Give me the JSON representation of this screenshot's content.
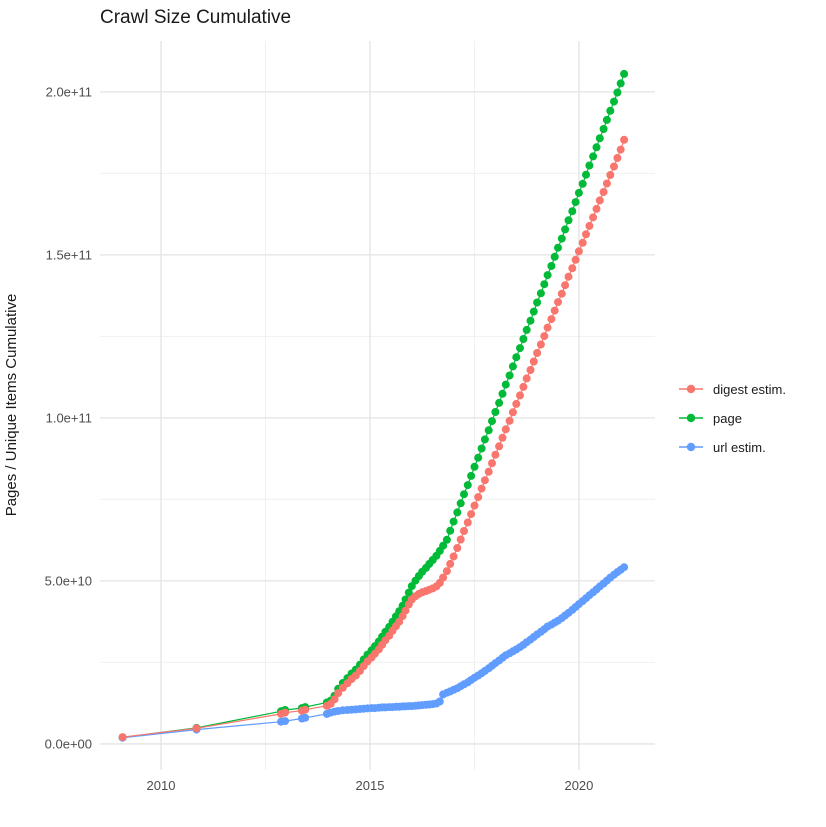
{
  "title": "Crawl Size Cumulative",
  "colors": {
    "digest": "#F8766D",
    "page": "#00BA38",
    "url": "#619CFF",
    "grid_major": "#E3E3E3",
    "grid_minor": "#F0F0F0",
    "axis_text": "#4d4d4d",
    "text": "#1a1a1a",
    "background": "#ffffff"
  },
  "chart_data": {
    "type": "scatter",
    "title": "Crawl Size Cumulative",
    "xlabel": "",
    "ylabel": "Pages / Unique Items Cumulative",
    "value_unit": "1e9 (billions of pages / unique items)",
    "xlim": [
      2008.54,
      2021.82
    ],
    "ylim": [
      -8,
      215.6
    ],
    "grid": "on",
    "legend_position": "right",
    "x_ticks": [
      {
        "value": 2010,
        "label": "2010"
      },
      {
        "value": 2015,
        "label": "2015"
      },
      {
        "value": 2020,
        "label": "2020"
      }
    ],
    "x_minor": [
      2012.5,
      2017.5
    ],
    "y_ticks": [
      {
        "value": 0,
        "label": "0.0e+00"
      },
      {
        "value": 50,
        "label": "5.0e+10"
      },
      {
        "value": 100,
        "label": "1.0e+11"
      },
      {
        "value": 150,
        "label": "1.5e+11"
      },
      {
        "value": 200,
        "label": "2.0e+11"
      }
    ],
    "y_minor": [
      25,
      75,
      125,
      175
    ],
    "series": [
      {
        "name": "digest estim.",
        "color": "#F8766D",
        "points": [
          [
            2009.08,
            2.1
          ],
          [
            2010.85,
            4.8
          ],
          [
            2012.87,
            9.2
          ],
          [
            2012.97,
            9.6
          ],
          [
            2013.37,
            10.2
          ],
          [
            2013.45,
            10.5
          ],
          [
            2013.97,
            11.7
          ],
          [
            2014.06,
            12.3
          ],
          [
            2014.15,
            13.7
          ],
          [
            2014.24,
            15.6
          ],
          [
            2014.35,
            17.2
          ],
          [
            2014.46,
            18.6
          ],
          [
            2014.56,
            19.9
          ],
          [
            2014.66,
            21.0
          ],
          [
            2014.76,
            22.4
          ],
          [
            2014.85,
            23.9
          ],
          [
            2014.94,
            25.3
          ],
          [
            2015.04,
            26.5
          ],
          [
            2015.12,
            27.7
          ],
          [
            2015.21,
            29.0
          ],
          [
            2015.29,
            30.4
          ],
          [
            2015.37,
            31.8
          ],
          [
            2015.46,
            33.2
          ],
          [
            2015.54,
            34.7
          ],
          [
            2015.62,
            36.1
          ],
          [
            2015.7,
            37.5
          ],
          [
            2015.78,
            39.2
          ],
          [
            2015.85,
            40.9
          ],
          [
            2015.93,
            42.8
          ],
          [
            2016.0,
            44.3
          ],
          [
            2016.09,
            45.3
          ],
          [
            2016.17,
            46.0
          ],
          [
            2016.25,
            46.5
          ],
          [
            2016.34,
            46.9
          ],
          [
            2016.42,
            47.3
          ],
          [
            2016.5,
            47.7
          ],
          [
            2016.59,
            48.3
          ],
          [
            2016.67,
            49.4
          ],
          [
            2016.75,
            51.0
          ],
          [
            2016.84,
            53.0
          ],
          [
            2016.92,
            55.2
          ],
          [
            2017.0,
            57.5
          ],
          [
            2017.09,
            60.1
          ],
          [
            2017.17,
            62.7
          ],
          [
            2017.25,
            65.3
          ],
          [
            2017.34,
            67.9
          ],
          [
            2017.42,
            70.5
          ],
          [
            2017.5,
            73.1
          ],
          [
            2017.59,
            75.7
          ],
          [
            2017.67,
            78.3
          ],
          [
            2017.75,
            80.9
          ],
          [
            2017.84,
            83.5
          ],
          [
            2017.92,
            86.1
          ],
          [
            2018.0,
            88.7
          ],
          [
            2018.09,
            91.3
          ],
          [
            2018.17,
            93.9
          ],
          [
            2018.25,
            96.5
          ],
          [
            2018.34,
            99.1
          ],
          [
            2018.42,
            101.7
          ],
          [
            2018.5,
            104.3
          ],
          [
            2018.59,
            106.9
          ],
          [
            2018.67,
            109.5
          ],
          [
            2018.75,
            112.1
          ],
          [
            2018.84,
            114.7
          ],
          [
            2018.92,
            117.3
          ],
          [
            2019.0,
            119.9
          ],
          [
            2019.09,
            122.5
          ],
          [
            2019.17,
            125.1
          ],
          [
            2019.25,
            127.7
          ],
          [
            2019.34,
            130.3
          ],
          [
            2019.42,
            132.9
          ],
          [
            2019.5,
            135.5
          ],
          [
            2019.59,
            138.1
          ],
          [
            2019.67,
            140.7
          ],
          [
            2019.75,
            143.3
          ],
          [
            2019.84,
            145.9
          ],
          [
            2019.92,
            148.5
          ],
          [
            2020.0,
            151.1
          ],
          [
            2020.09,
            153.7
          ],
          [
            2020.17,
            156.3
          ],
          [
            2020.25,
            158.9
          ],
          [
            2020.34,
            161.5
          ],
          [
            2020.42,
            164.1
          ],
          [
            2020.5,
            166.7
          ],
          [
            2020.59,
            169.3
          ],
          [
            2020.67,
            171.9
          ],
          [
            2020.75,
            174.5
          ],
          [
            2020.84,
            177.1
          ],
          [
            2020.92,
            179.7
          ],
          [
            2021.0,
            182.3
          ],
          [
            2021.08,
            185.3
          ]
        ]
      },
      {
        "name": "page",
        "color": "#00BA38",
        "points": [
          [
            2009.08,
            2.0
          ],
          [
            2010.85,
            4.9
          ],
          [
            2012.87,
            10.0
          ],
          [
            2012.97,
            10.4
          ],
          [
            2013.37,
            11.0
          ],
          [
            2013.45,
            11.3
          ],
          [
            2013.97,
            12.7
          ],
          [
            2014.06,
            13.3
          ],
          [
            2014.15,
            14.8
          ],
          [
            2014.24,
            16.9
          ],
          [
            2014.35,
            18.7
          ],
          [
            2014.46,
            20.2
          ],
          [
            2014.56,
            21.6
          ],
          [
            2014.66,
            22.8
          ],
          [
            2014.76,
            24.3
          ],
          [
            2014.85,
            25.9
          ],
          [
            2014.94,
            27.4
          ],
          [
            2015.04,
            28.7
          ],
          [
            2015.12,
            30.0
          ],
          [
            2015.21,
            31.4
          ],
          [
            2015.29,
            32.9
          ],
          [
            2015.37,
            34.4
          ],
          [
            2015.46,
            35.9
          ],
          [
            2015.54,
            37.5
          ],
          [
            2015.62,
            39.1
          ],
          [
            2015.7,
            40.7
          ],
          [
            2015.78,
            42.4
          ],
          [
            2015.85,
            44.3
          ],
          [
            2015.93,
            46.4
          ],
          [
            2016.0,
            48.4
          ],
          [
            2016.09,
            50.1
          ],
          [
            2016.17,
            51.5
          ],
          [
            2016.25,
            52.8
          ],
          [
            2016.34,
            54.0
          ],
          [
            2016.42,
            55.2
          ],
          [
            2016.5,
            56.4
          ],
          [
            2016.59,
            57.7
          ],
          [
            2016.67,
            59.2
          ],
          [
            2016.75,
            60.8
          ],
          [
            2016.84,
            62.6
          ],
          [
            2016.92,
            65.4
          ],
          [
            2017.0,
            68.2
          ],
          [
            2017.09,
            71.0
          ],
          [
            2017.17,
            73.8
          ],
          [
            2017.25,
            76.6
          ],
          [
            2017.34,
            79.4
          ],
          [
            2017.42,
            82.2
          ],
          [
            2017.5,
            85.0
          ],
          [
            2017.59,
            87.8
          ],
          [
            2017.67,
            90.6
          ],
          [
            2017.75,
            93.4
          ],
          [
            2017.84,
            96.2
          ],
          [
            2017.92,
            99.0
          ],
          [
            2018.0,
            101.8
          ],
          [
            2018.09,
            104.6
          ],
          [
            2018.17,
            107.4
          ],
          [
            2018.25,
            110.2
          ],
          [
            2018.34,
            113.0
          ],
          [
            2018.42,
            115.8
          ],
          [
            2018.5,
            118.6
          ],
          [
            2018.59,
            121.4
          ],
          [
            2018.67,
            124.2
          ],
          [
            2018.75,
            127.0
          ],
          [
            2018.84,
            129.8
          ],
          [
            2018.92,
            132.6
          ],
          [
            2019.0,
            135.4
          ],
          [
            2019.09,
            138.2
          ],
          [
            2019.17,
            141.0
          ],
          [
            2019.25,
            143.8
          ],
          [
            2019.34,
            146.6
          ],
          [
            2019.42,
            149.4
          ],
          [
            2019.5,
            152.2
          ],
          [
            2019.59,
            155.0
          ],
          [
            2019.67,
            157.8
          ],
          [
            2019.75,
            160.6
          ],
          [
            2019.84,
            163.4
          ],
          [
            2019.92,
            166.2
          ],
          [
            2020.0,
            169.0
          ],
          [
            2020.09,
            171.8
          ],
          [
            2020.17,
            174.6
          ],
          [
            2020.25,
            177.4
          ],
          [
            2020.34,
            180.2
          ],
          [
            2020.42,
            183.0
          ],
          [
            2020.5,
            185.8
          ],
          [
            2020.59,
            188.6
          ],
          [
            2020.67,
            191.4
          ],
          [
            2020.75,
            194.2
          ],
          [
            2020.84,
            197.0
          ],
          [
            2020.92,
            199.8
          ],
          [
            2021.0,
            202.6
          ],
          [
            2021.08,
            205.5
          ]
        ]
      },
      {
        "name": "url estim.",
        "color": "#619CFF",
        "points": [
          [
            2009.08,
            1.9
          ],
          [
            2010.85,
            4.4
          ],
          [
            2012.87,
            6.8
          ],
          [
            2012.97,
            7.0
          ],
          [
            2013.37,
            7.8
          ],
          [
            2013.45,
            8.0
          ],
          [
            2013.97,
            9.2
          ],
          [
            2014.06,
            9.6
          ],
          [
            2014.15,
            9.9
          ],
          [
            2014.24,
            10.1
          ],
          [
            2014.35,
            10.3
          ],
          [
            2014.46,
            10.4
          ],
          [
            2014.56,
            10.5
          ],
          [
            2014.66,
            10.6
          ],
          [
            2014.76,
            10.7
          ],
          [
            2014.85,
            10.8
          ],
          [
            2014.94,
            10.9
          ],
          [
            2015.04,
            11.0
          ],
          [
            2015.12,
            11.0
          ],
          [
            2015.21,
            11.1
          ],
          [
            2015.29,
            11.2
          ],
          [
            2015.37,
            11.2
          ],
          [
            2015.46,
            11.3
          ],
          [
            2015.54,
            11.3
          ],
          [
            2015.62,
            11.4
          ],
          [
            2015.7,
            11.4
          ],
          [
            2015.78,
            11.5
          ],
          [
            2015.85,
            11.5
          ],
          [
            2015.93,
            11.6
          ],
          [
            2016.0,
            11.6
          ],
          [
            2016.09,
            11.7
          ],
          [
            2016.17,
            11.8
          ],
          [
            2016.25,
            11.9
          ],
          [
            2016.34,
            12.0
          ],
          [
            2016.42,
            12.1
          ],
          [
            2016.5,
            12.2
          ],
          [
            2016.59,
            12.4
          ],
          [
            2016.67,
            13.0
          ],
          [
            2016.75,
            15.2
          ],
          [
            2016.84,
            15.7
          ],
          [
            2016.92,
            16.1
          ],
          [
            2017.0,
            16.6
          ],
          [
            2017.09,
            17.1
          ],
          [
            2017.17,
            17.7
          ],
          [
            2017.25,
            18.3
          ],
          [
            2017.34,
            18.9
          ],
          [
            2017.42,
            19.6
          ],
          [
            2017.5,
            20.3
          ],
          [
            2017.59,
            21.0
          ],
          [
            2017.67,
            21.7
          ],
          [
            2017.75,
            22.4
          ],
          [
            2017.84,
            23.2
          ],
          [
            2017.92,
            24.0
          ],
          [
            2018.0,
            24.8
          ],
          [
            2018.09,
            25.6
          ],
          [
            2018.17,
            26.4
          ],
          [
            2018.25,
            27.2
          ],
          [
            2018.34,
            27.8
          ],
          [
            2018.42,
            28.4
          ],
          [
            2018.5,
            29.0
          ],
          [
            2018.59,
            29.7
          ],
          [
            2018.67,
            30.4
          ],
          [
            2018.75,
            31.2
          ],
          [
            2018.84,
            32.0
          ],
          [
            2018.92,
            32.8
          ],
          [
            2019.0,
            33.6
          ],
          [
            2019.09,
            34.4
          ],
          [
            2019.17,
            35.2
          ],
          [
            2019.25,
            36.0
          ],
          [
            2019.34,
            36.6
          ],
          [
            2019.42,
            37.2
          ],
          [
            2019.5,
            37.8
          ],
          [
            2019.59,
            38.6
          ],
          [
            2019.67,
            39.4
          ],
          [
            2019.75,
            40.2
          ],
          [
            2019.84,
            41.1
          ],
          [
            2019.92,
            42.0
          ],
          [
            2020.0,
            42.9
          ],
          [
            2020.09,
            43.8
          ],
          [
            2020.17,
            44.7
          ],
          [
            2020.25,
            45.6
          ],
          [
            2020.34,
            46.5
          ],
          [
            2020.42,
            47.4
          ],
          [
            2020.5,
            48.3
          ],
          [
            2020.59,
            49.2
          ],
          [
            2020.67,
            50.1
          ],
          [
            2020.75,
            51.0
          ],
          [
            2020.84,
            51.9
          ],
          [
            2020.92,
            52.7
          ],
          [
            2021.0,
            53.4
          ],
          [
            2021.08,
            54.2
          ]
        ]
      }
    ]
  }
}
